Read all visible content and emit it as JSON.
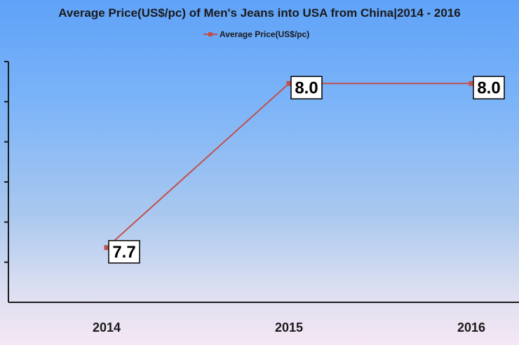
{
  "chart_data": {
    "type": "line",
    "title": "Average Price(US$/pc) of Men's Jeans into USA from China|2014 - 2016",
    "categories": [
      "2014",
      "2015",
      "2016"
    ],
    "series": [
      {
        "name": "Average Price(US$/pc)",
        "values": [
          7.7,
          8.0,
          8.0
        ],
        "labels": [
          "7.7",
          "8.0",
          "8.0"
        ],
        "color": "#c0504d"
      }
    ],
    "xlabel": "",
    "ylabel": "",
    "grid": false,
    "legend_position": "top-center"
  }
}
